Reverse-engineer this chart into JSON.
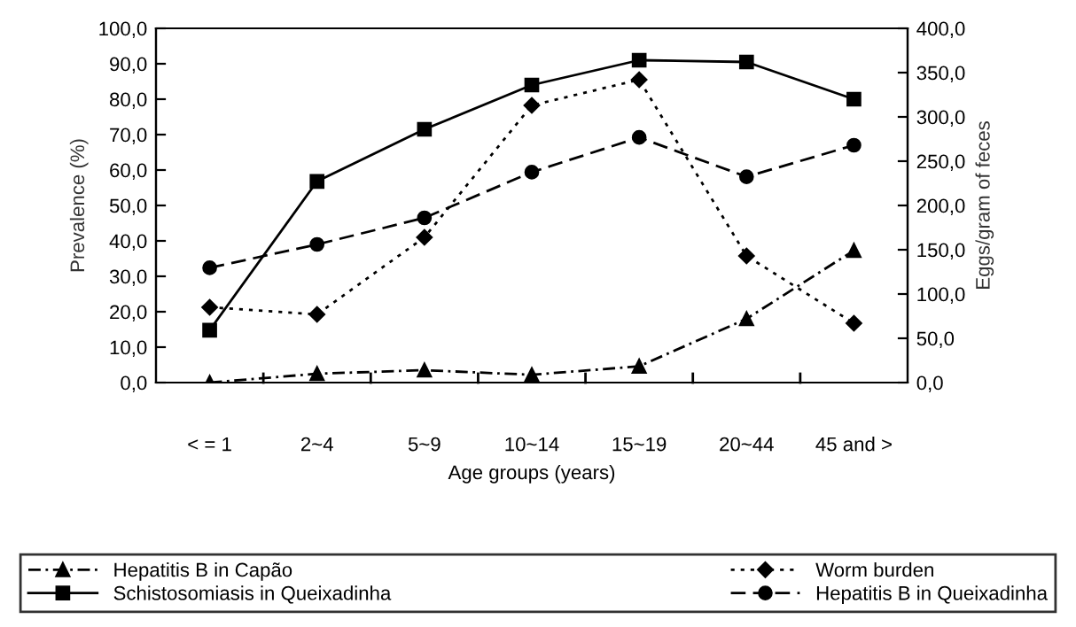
{
  "chart_data": {
    "type": "line",
    "xlabel": "Age groups (years)",
    "ylabel": "Prevalence (%)",
    "y2label": "Eggs/gram of feces",
    "categories": [
      "< = 1",
      "2~4",
      "5~9",
      "10~14",
      "15~19",
      "20~44",
      "45 and >"
    ],
    "series": [
      {
        "name": "Hepatitis B in Capão",
        "color": "#000000",
        "marker": "triangle",
        "line_style": "dashdot",
        "values": [
          0.0,
          2.5,
          3.5,
          2.2,
          4.6,
          18.0,
          37.3
        ]
      },
      {
        "name": "Hepatitis B in Queixadinha",
        "color": "#000000",
        "marker": "circle",
        "line_style": "dashed",
        "values": [
          32.4,
          39.0,
          46.5,
          59.4,
          69.2,
          58.1,
          67.0
        ]
      },
      {
        "name": "Schistosomiasis in Queixadinha",
        "color": "#000000",
        "marker": "square",
        "line_style": "solid",
        "values": [
          14.8,
          56.8,
          71.5,
          84.0,
          91.0,
          90.5,
          80.0
        ]
      },
      {
        "name": "Worm burden",
        "color": "#000000",
        "marker": "diamond",
        "line_style": "dotted",
        "axis": "y2",
        "values": [
          85,
          77,
          164,
          313,
          342,
          143,
          67
        ]
      }
    ],
    "ylim": [
      0,
      100
    ],
    "yticks": [
      {
        "value": 0,
        "label": "0,0"
      },
      {
        "value": 10,
        "label": "10,0"
      },
      {
        "value": 20,
        "label": "20,0"
      },
      {
        "value": 30,
        "label": "30,0"
      },
      {
        "value": 40,
        "label": "40,0"
      },
      {
        "value": 50,
        "label": "50,0"
      },
      {
        "value": 60,
        "label": "60,0"
      },
      {
        "value": 70,
        "label": "70,0"
      },
      {
        "value": 80,
        "label": "80,0"
      },
      {
        "value": 90,
        "label": "90,0"
      },
      {
        "value": 100,
        "label": "100,0"
      }
    ],
    "y2lim": [
      0,
      400
    ],
    "y2ticks": [
      {
        "value": 0,
        "label": "0,0"
      },
      {
        "value": 50,
        "label": "50,0"
      },
      {
        "value": 100,
        "label": "100,0"
      },
      {
        "value": 150,
        "label": "150,0"
      },
      {
        "value": 200,
        "label": "200,0"
      },
      {
        "value": 250,
        "label": "250,0"
      },
      {
        "value": 300,
        "label": "300,0"
      },
      {
        "value": 350,
        "label": "350,0"
      },
      {
        "value": 400,
        "label": "400,0"
      }
    ],
    "grid": false,
    "legend": "bottom"
  }
}
